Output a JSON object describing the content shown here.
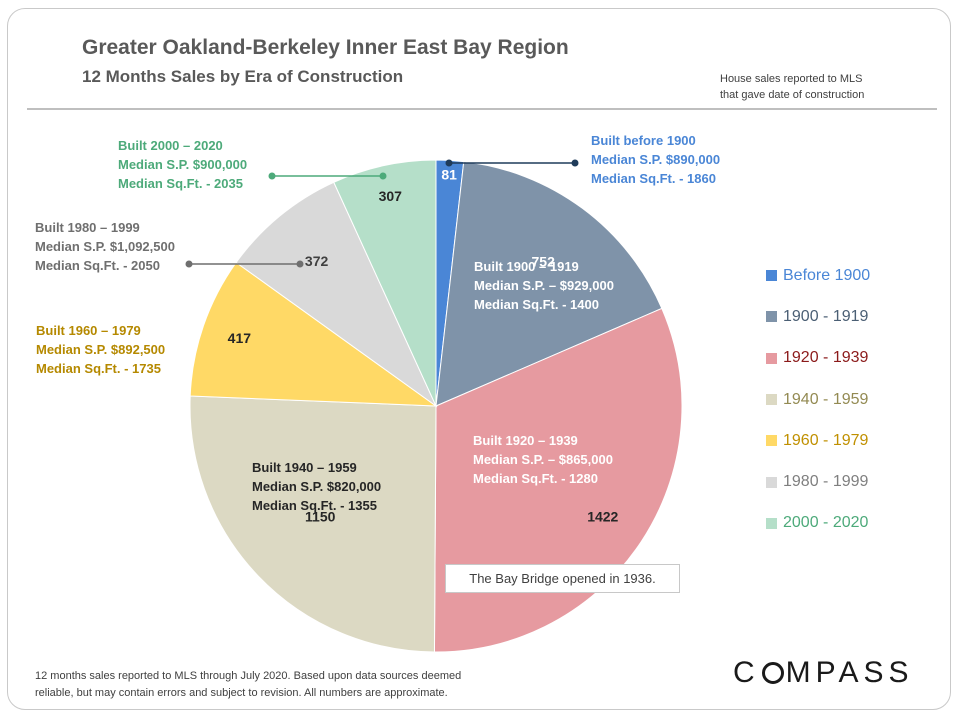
{
  "header": {
    "title": "Greater Oakland-Berkeley Inner East Bay Region",
    "subtitle": "12 Months  Sales by Era of Construction",
    "note_line1": "House sales reported to MLS",
    "note_line2": "that gave date of construction"
  },
  "chart_data": {
    "type": "pie",
    "title": "Greater Oakland-Berkeley Inner East Bay Region",
    "subtitle": "12 Months  Sales by Era of Construction",
    "start_angle": "12 o'clock, clockwise",
    "legend_position": "right",
    "categories": [
      "Before 1900",
      "1900 - 1919",
      "1920 - 1939",
      "1940 - 1959",
      "1960 - 1979",
      "1980 - 1999",
      "2000 - 2020"
    ],
    "values": [
      81,
      752,
      1422,
      1150,
      417,
      372,
      307
    ],
    "colors": [
      "#4a86d6",
      "#7f93a9",
      "#e69aa0",
      "#dcd9c3",
      "#ffd966",
      "#d9d9d9",
      "#b5dfc9"
    ],
    "legend_text_colors": [
      "#4a86d6",
      "#4b5f74",
      "#8b1a1a",
      "#938a52",
      "#c09000",
      "#7f7f7f",
      "#4daa7a"
    ],
    "value_labels": [
      "81",
      "752",
      "1422",
      "1150",
      "417",
      "372",
      "307"
    ],
    "callouts": [
      {
        "lines": [
          "Built before 1900",
          "Median S.P. $890,000",
          "Median Sq.Ft. - 1860"
        ],
        "color": "#4a86d6"
      },
      {
        "lines": [
          "Built 1900 – 1919",
          "Median S.P. – $929,000",
          "Median Sq.Ft. - 1400"
        ],
        "color": "#ffffff"
      },
      {
        "lines": [
          "Built 1920 – 1939",
          "Median S.P. – $865,000",
          "Median Sq.Ft. - 1280"
        ],
        "color": "#ffffff"
      },
      {
        "lines": [
          "Built 1940 – 1959",
          "Median S.P. $820,000",
          "Median Sq.Ft. - 1355"
        ],
        "color": "#262626"
      },
      {
        "lines": [
          "Built 1960 – 1979",
          "Median S.P. $892,500",
          "Median Sq.Ft. - 1735"
        ],
        "color": "#b58900"
      },
      {
        "lines": [
          "Built 1980 – 1999",
          "Median S.P. $1,092,500",
          "Median Sq.Ft. - 2050"
        ],
        "color": "#6f6f6f"
      },
      {
        "lines": [
          "Built 2000 – 2020",
          "Median S.P. $900,000",
          "Median Sq.Ft. - 2035"
        ],
        "color": "#4daa7a"
      }
    ],
    "annotation": "The Bay Bridge opened in 1936."
  },
  "footer": {
    "line1": "12 months sales reported to MLS through July 2020. Based upon data sources deemed",
    "line2": "reliable, but may contain errors and subject to revision. All numbers are approximate."
  },
  "logo": {
    "text": "COMPASS"
  }
}
